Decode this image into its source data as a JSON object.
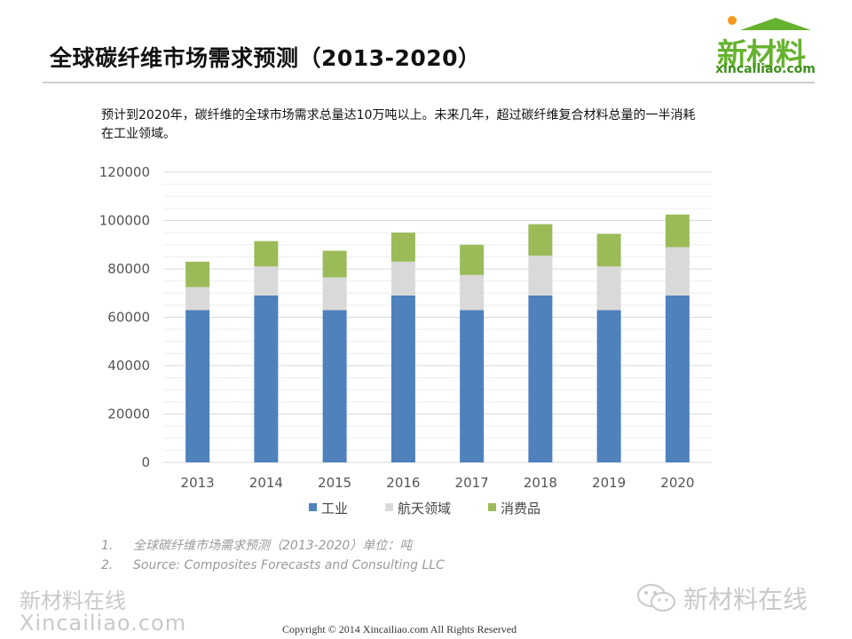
{
  "page": {
    "title": "全球碳纤维市场需求预测（2013-2020）",
    "description": "预计到2020年，碳纤维的全球市场需求总量达10万吨以上。未来几年，超过碳纤维复合材料总量的一半消耗在工业领域。",
    "notes": [
      {
        "num": "1.",
        "text": "全球碳纤维市场需求预测（2013-2020）单位：吨"
      },
      {
        "num": "2.",
        "text": "Source: Composites Forecasts and Consulting LLC"
      }
    ],
    "copyright": "Copyright © 2014   Xincailiao.com    All Rights Reserved"
  },
  "logo": {
    "main": "新材料",
    "sub": "xincailiao.com"
  },
  "watermarks": {
    "left_line1": "新材料在线",
    "left_line2": "Xincailiao.com",
    "right": "新材料在线",
    "wechat_icon": "wechat-icon"
  },
  "colors": {
    "工业": "#4f81bd",
    "航天领域": "#d9d9d9",
    "消费品": "#9bbb59"
  },
  "chart_data": {
    "type": "bar",
    "stacked": true,
    "categories": [
      "2013",
      "2014",
      "2015",
      "2016",
      "2017",
      "2018",
      "2019",
      "2020"
    ],
    "series": [
      {
        "name": "工业",
        "values": [
          63000,
          69000,
          63000,
          69000,
          63000,
          69000,
          63000,
          69000
        ]
      },
      {
        "name": "航天领域",
        "values": [
          9500,
          12000,
          13500,
          14000,
          14500,
          16500,
          18000,
          20000
        ]
      },
      {
        "name": "消费品",
        "values": [
          10500,
          10500,
          11000,
          12000,
          12500,
          13000,
          13500,
          13500
        ]
      }
    ],
    "yticks": [
      0,
      20000,
      40000,
      60000,
      80000,
      100000,
      120000
    ],
    "ylim": [
      0,
      120000
    ],
    "grid": true,
    "legend_position": "bottom"
  }
}
